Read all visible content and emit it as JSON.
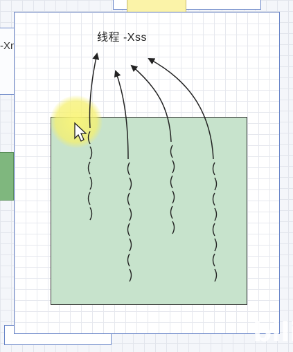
{
  "diagram": {
    "thread_label": "线程 -Xss",
    "left_fragment": "-Xn",
    "watermark": "bili",
    "colors": {
      "process_fill": "#c7e3cc",
      "frame_border": "#6a86c8",
      "highlight": "#f5f06e",
      "accent_green": "#7fb77e",
      "accent_yellow": "#fbf3a8"
    },
    "stack_counts": [
      6,
      8,
      6,
      8
    ],
    "icons": [
      "pointer-cursor-icon"
    ]
  }
}
